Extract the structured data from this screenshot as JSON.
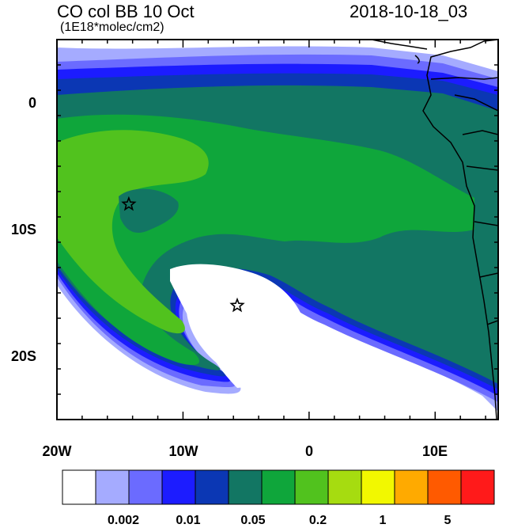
{
  "title": "CO col BB 10 Oct",
  "units": "(1E18*molec/cm2)",
  "date": "2018-10-18_03",
  "lat_labels": [
    "0",
    "10S",
    "20S"
  ],
  "lon_labels": [
    "20W",
    "10W",
    "0",
    "10E"
  ],
  "colorbar": {
    "colors": [
      "#ffffff",
      "#a5abff",
      "#6b6bff",
      "#1c1cff",
      "#0b37b4",
      "#127663",
      "#0fa63b",
      "#51c21e",
      "#a6dc10",
      "#f2f800",
      "#ffaa00",
      "#ff5a00",
      "#ff1a1a"
    ],
    "labels": [
      "0.002",
      "0.01",
      "0.05",
      "0.2",
      "1",
      "5"
    ]
  },
  "markers": [
    {
      "name": "star-west",
      "lon": -14.3,
      "lat": -8.0
    },
    {
      "name": "star-south",
      "lon": -5.7,
      "lat": -16.0
    }
  ],
  "map": {
    "lon_range": [
      -20,
      15
    ],
    "lat_range": [
      -25,
      5
    ],
    "coast_color": "#000000"
  }
}
